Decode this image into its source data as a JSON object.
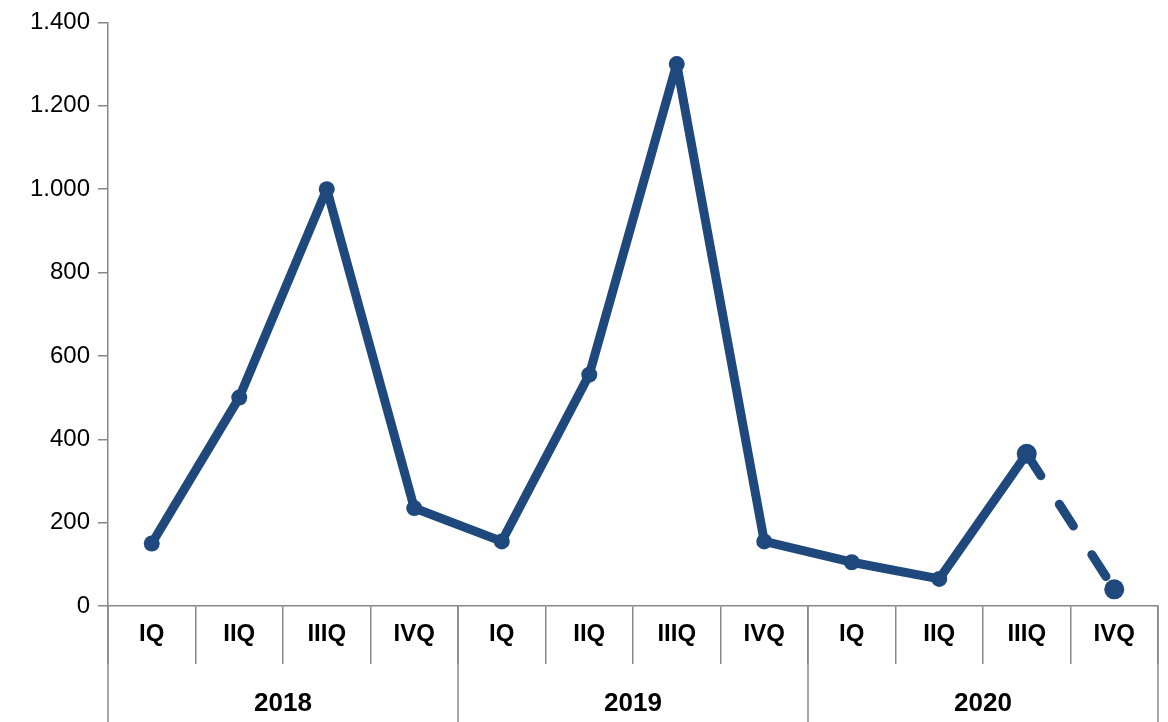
{
  "chart_data": {
    "type": "line",
    "categories": [
      "IQ",
      "IIQ",
      "IIIQ",
      "IVQ",
      "IQ",
      "IIQ",
      "IIIQ",
      "IVQ",
      "IQ",
      "IIQ",
      "IIIQ",
      "IVQ"
    ],
    "series": [
      {
        "color": "#1f497d",
        "line_style": "solid",
        "values": [
          150,
          500,
          1000,
          235,
          155,
          555,
          1300,
          155,
          105,
          65,
          365,
          null
        ]
      },
      {
        "color": "#1f497d",
        "line_style": "dashed",
        "values": [
          null,
          null,
          null,
          null,
          null,
          null,
          null,
          null,
          null,
          null,
          365,
          40
        ]
      }
    ],
    "ylim": [
      0,
      1400
    ],
    "yticks": [
      {
        "value": 0,
        "label": "0"
      },
      {
        "value": 200,
        "label": "200"
      },
      {
        "value": 400,
        "label": "400"
      },
      {
        "value": 600,
        "label": "600"
      },
      {
        "value": 800,
        "label": "800"
      },
      {
        "value": 1000,
        "label": "1.000"
      },
      {
        "value": 1200,
        "label": "1.200"
      },
      {
        "value": 1400,
        "label": "1.400"
      }
    ],
    "annotations": [
      "2018",
      "2019",
      "2020"
    ],
    "grid": false,
    "legend": false,
    "marker": "circle"
  }
}
